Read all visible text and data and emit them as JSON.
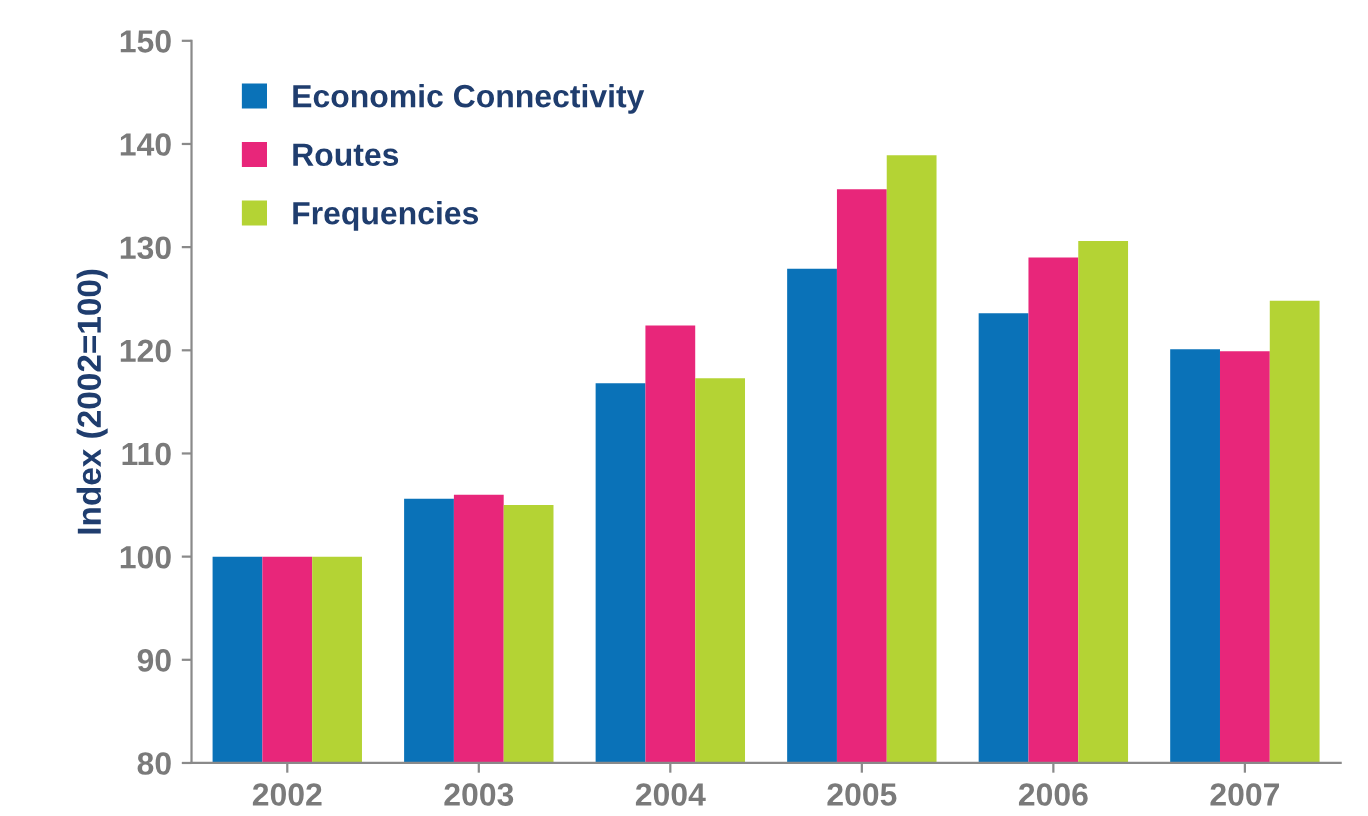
{
  "chart_data": {
    "type": "bar",
    "ylabel": "Index (2002=100)",
    "categories": [
      "2002",
      "2003",
      "2004",
      "2005",
      "2006",
      "2007"
    ],
    "series": [
      {
        "name": "Economic Connectivity",
        "color": "#0a72b8",
        "values": [
          100,
          105.6,
          116.8,
          127.9,
          123.6,
          120.1
        ]
      },
      {
        "name": "Routes",
        "color": "#e8267a",
        "values": [
          100,
          106,
          122.4,
          135.6,
          129,
          119.9
        ]
      },
      {
        "name": "Frequencies",
        "color": "#b4d334",
        "values": [
          100,
          105,
          117.3,
          138.9,
          130.6,
          124.8
        ]
      }
    ],
    "ylim": [
      80,
      150
    ],
    "yticks": [
      80,
      90,
      100,
      110,
      120,
      130,
      140,
      150
    ],
    "grid": false,
    "legend": "top left"
  }
}
